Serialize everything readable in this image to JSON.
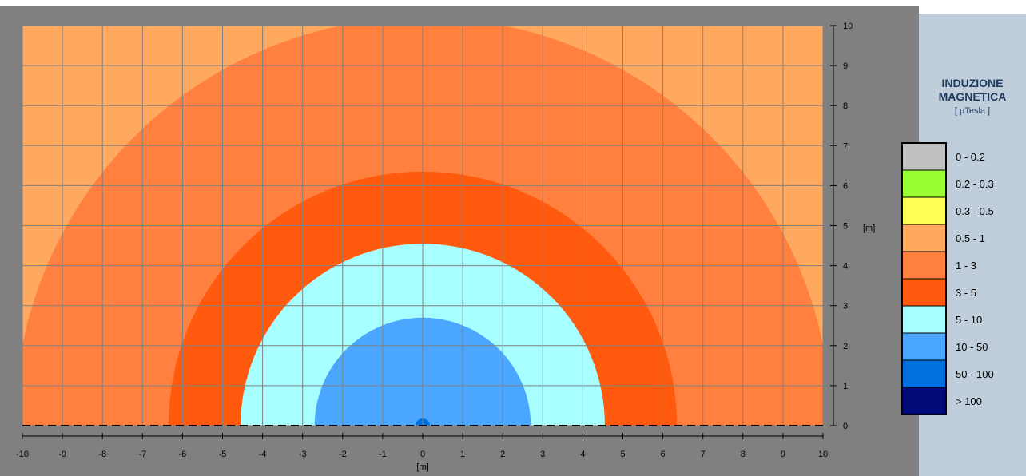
{
  "chart_data": {
    "type": "heatmap",
    "xlabel": "[m]",
    "ylabel": "[m]",
    "xlim": [
      -10,
      10
    ],
    "ylim": [
      0,
      10
    ],
    "x_ticks": [
      "-10",
      "-9",
      "-8",
      "-7",
      "-6",
      "-5",
      "-4",
      "-3",
      "-2",
      "-1",
      "0",
      "1",
      "2",
      "3",
      "4",
      "5",
      "6",
      "7",
      "8",
      "9",
      "10"
    ],
    "y_ticks": [
      "0",
      "1",
      "2",
      "3",
      "4",
      "5",
      "6",
      "7",
      "8",
      "9",
      "10"
    ],
    "grid": true,
    "background_class": "1 - 3",
    "contours": [
      {
        "range": "0.5 - 1",
        "boundary_radius": 10.2
      },
      {
        "range": "3 - 5",
        "boundary_radius": 6.35
      },
      {
        "range": "5 - 10",
        "boundary_radius": 4.55
      },
      {
        "range": "10 - 50",
        "boundary_radius": 2.7
      },
      {
        "range": "50 - 100",
        "boundary_radius": 0.18
      }
    ]
  },
  "legend": {
    "title_line1": "INDUZIONE",
    "title_line2": "MAGNETICA",
    "unit": "[ μTesla ]",
    "entries": [
      {
        "label": "0 -  0.2",
        "color": "#c0c0c0"
      },
      {
        "label": "0.2 -  0.3",
        "color": "#99ff33"
      },
      {
        "label": "0.3 -  0.5",
        "color": "#ffff55"
      },
      {
        "label": "0.5 -  1",
        "color": "#ffa860"
      },
      {
        "label": "1 -  3",
        "color": "#ff803f"
      },
      {
        "label": "3 -  5",
        "color": "#ff5a0d"
      },
      {
        "label": "5 -  10",
        "color": "#a8ffff"
      },
      {
        "label": "10 -  50",
        "color": "#4aa6ff"
      },
      {
        "label": "50 -  100",
        "color": "#0070e0"
      },
      {
        "label": ">  100",
        "color": "#000a78"
      }
    ]
  },
  "colors": {
    "panel": "#808080",
    "legend_panel": "#c0cedc",
    "grid": "#808080",
    "c_lightorange": "#ffa860",
    "c_orange": "#ff803f",
    "c_darkorange": "#ff5a0d",
    "c_cyan": "#a8ffff",
    "c_blue": "#4aa6ff",
    "c_darkblue": "#0070e0"
  }
}
